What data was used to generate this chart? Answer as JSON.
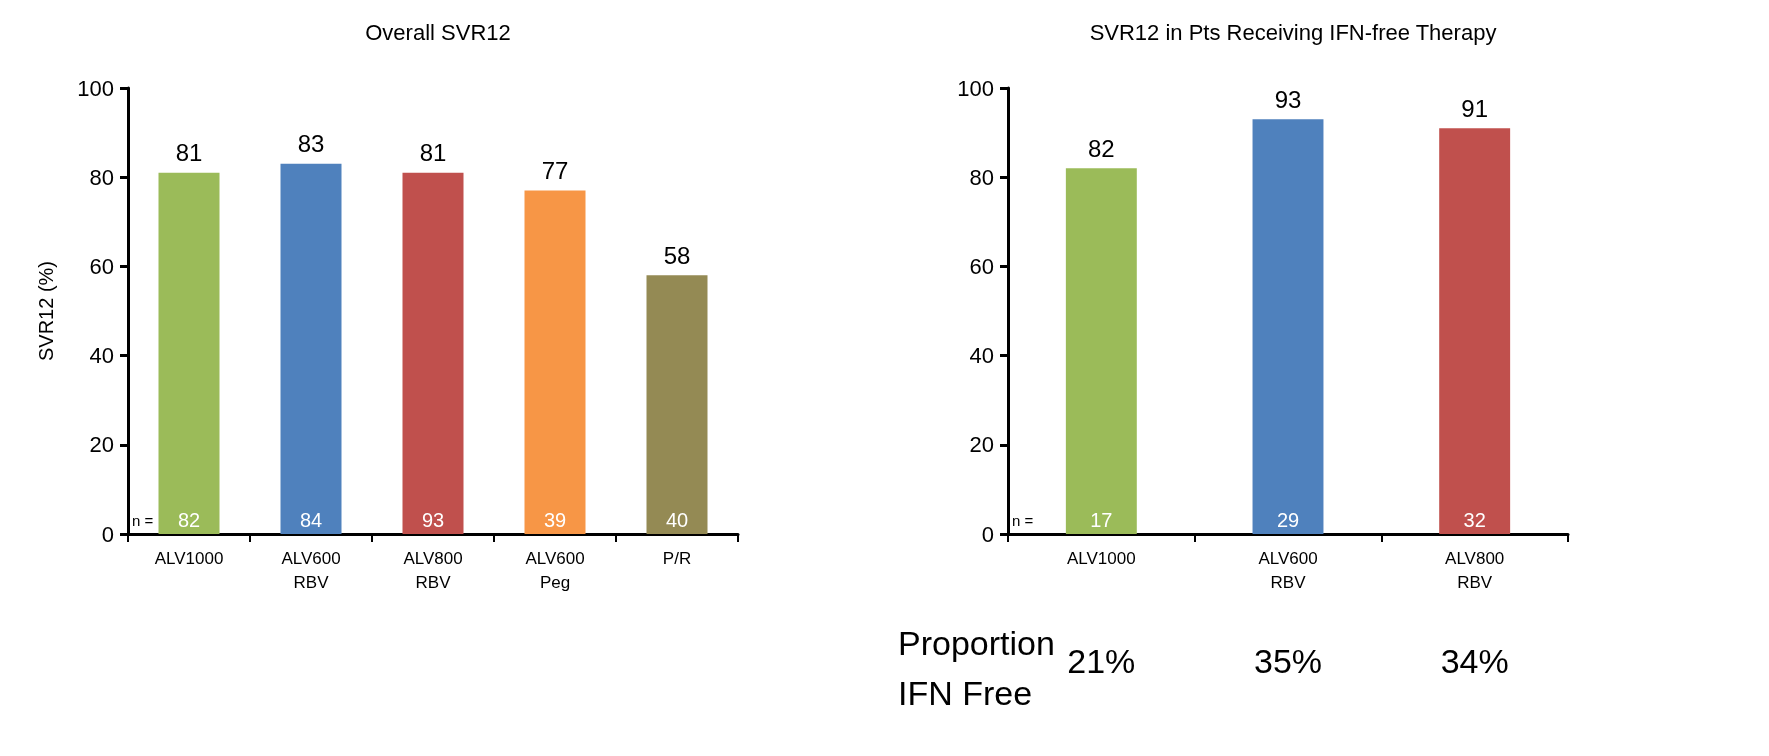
{
  "chart_data": [
    {
      "type": "bar",
      "title": "Overall SVR12",
      "ylabel": "SVR12 (%)",
      "categories": [
        "ALV1000",
        "ALV600\nRBV",
        "ALV800\nRBV",
        "ALV600\nPeg",
        "P/R"
      ],
      "values": [
        81,
        83,
        81,
        77,
        58
      ],
      "colors": [
        "#9bbb59",
        "#4f81bd",
        "#c0504d",
        "#f79646",
        "#948a54"
      ],
      "ylim": [
        0,
        100
      ],
      "yticks": [
        0,
        20,
        40,
        60,
        80,
        100
      ],
      "grid": false,
      "data_labels": true,
      "annotations": [
        "n =",
        "82",
        "84",
        "93",
        "39",
        "40"
      ]
    },
    {
      "type": "bar",
      "title": "SVR12 in Pts Receiving IFN-free Therapy",
      "categories": [
        "ALV1000",
        "ALV600\nRBV",
        "ALV800\nRBV"
      ],
      "values": [
        82,
        93,
        91
      ],
      "colors": [
        "#9bbb59",
        "#4f81bd",
        "#c0504d"
      ],
      "ylim": [
        0,
        100
      ],
      "yticks": [
        0,
        20,
        40,
        60,
        80,
        100
      ],
      "grid": false,
      "data_labels": true,
      "annotations": [
        "n =",
        "Proportion\nIFN Free",
        "17",
        "29",
        "32",
        "21%",
        "35%",
        "34%"
      ]
    }
  ]
}
